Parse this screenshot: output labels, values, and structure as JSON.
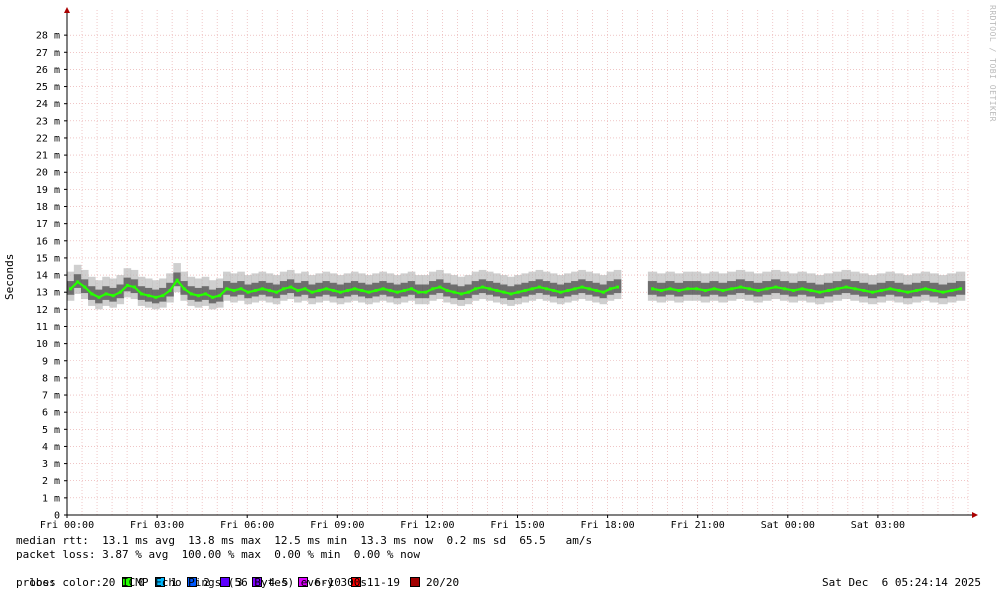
{
  "chart_data": {
    "type": "line",
    "title": "",
    "ylabel": "Seconds",
    "ylim": [
      0,
      0.029
    ],
    "y_unit_suffix": "m",
    "y_ticks": [
      "0",
      "1 m",
      "2 m",
      "3 m",
      "4 m",
      "5 m",
      "6 m",
      "7 m",
      "8 m",
      "9 m",
      "10 m",
      "11 m",
      "12 m",
      "13 m",
      "14 m",
      "15 m",
      "16 m",
      "17 m",
      "18 m",
      "19 m",
      "20 m",
      "21 m",
      "22 m",
      "23 m",
      "24 m",
      "25 m",
      "26 m",
      "27 m",
      "28 m"
    ],
    "x_ticks": [
      "Fri 00:00",
      "Fri 03:00",
      "Fri 06:00",
      "Fri 09:00",
      "Fri 12:00",
      "Fri 15:00",
      "Fri 18:00",
      "Fri 21:00",
      "Sat 00:00",
      "Sat 03:00"
    ],
    "x_range_hours": [
      0,
      30
    ],
    "gap_hours": [
      18.45,
      19.35
    ],
    "median_rtt_ms": [
      13.2,
      13.6,
      13.3,
      12.9,
      12.7,
      12.9,
      12.8,
      13.0,
      13.4,
      13.3,
      12.9,
      12.8,
      12.7,
      12.8,
      13.1,
      13.7,
      13.2,
      12.9,
      12.8,
      12.9,
      12.7,
      12.8,
      13.2,
      13.1,
      13.2,
      13.0,
      13.1,
      13.2,
      13.1,
      13.0,
      13.2,
      13.3,
      13.1,
      13.2,
      13.0,
      13.1,
      13.2,
      13.1,
      13.0,
      13.1,
      13.2,
      13.1,
      13.0,
      13.1,
      13.2,
      13.1,
      13.0,
      13.1,
      13.2,
      13.0,
      13.0,
      13.2,
      13.3,
      13.1,
      13.0,
      12.9,
      13.0,
      13.2,
      13.3,
      13.2,
      13.1,
      13.0,
      12.9,
      13.0,
      13.1,
      13.2,
      13.3,
      13.2,
      13.1,
      13.0,
      13.1,
      13.2,
      13.3,
      13.2,
      13.1,
      13.0,
      13.2,
      13.3,
      13.2,
      13.1,
      13.2,
      13.1,
      13.2,
      13.2,
      13.1,
      13.2,
      13.1,
      13.2,
      13.3,
      13.2,
      13.1,
      13.2,
      13.3,
      13.2,
      13.1,
      13.2,
      13.1,
      13.0,
      13.1,
      13.2,
      13.3,
      13.2,
      13.1,
      13.0,
      13.1,
      13.2,
      13.1,
      13.0,
      13.1,
      13.2,
      13.1,
      13.0,
      13.1,
      13.2
    ],
    "legend": {
      "median_rtt": "median rtt:  13.1 ms avg  13.8 ms max  12.5 ms min  13.3 ms now  0.2 ms sd  65.5   am/s",
      "packet_loss": "packet loss: 3.87 % avg  100.00 % max  0.00 % min  0.00 % now",
      "loss_color_label": "loss color:",
      "loss_colors": [
        {
          "label": "0",
          "color": "#26ff00"
        },
        {
          "label": "1",
          "color": "#00b8ff"
        },
        {
          "label": "2",
          "color": "#0059ff"
        },
        {
          "label": "3",
          "color": "#5e00ff"
        },
        {
          "label": "4-5",
          "color": "#7e00ff"
        },
        {
          "label": "6-10",
          "color": "#dd00ff"
        },
        {
          "label": "11-19",
          "color": "#ff0000"
        },
        {
          "label": "20/20",
          "color": "#a10000"
        }
      ],
      "probe": "probe:       20 ICMP Echo Pings (56 Bytes) every 300s"
    },
    "timestamp": "Sat Dec  6 05:24:14 2025",
    "watermark": "RRDTOOL / TOBI OETIKER",
    "colors": {
      "grid": "#e6a3a3",
      "median": "#26ff00",
      "smoke": "#888888",
      "axis": "#000000",
      "arrow": "#aa0000"
    }
  }
}
